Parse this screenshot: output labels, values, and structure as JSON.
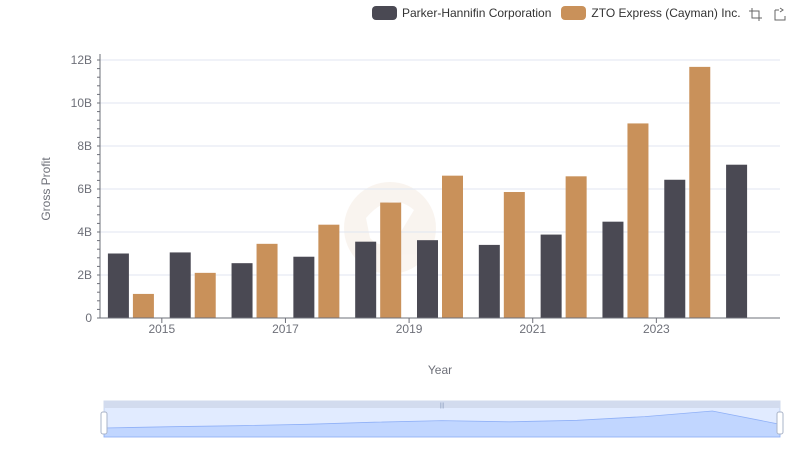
{
  "legend": [
    {
      "name": "Parker-Hannifin Corporation",
      "color": "#4a4953"
    },
    {
      "name": "ZTO Express (Cayman) Inc.",
      "color": "#c9915a"
    }
  ],
  "toolbox": {
    "zoom_icon": "zoom-icon",
    "restore_icon": "zoom-reset-icon"
  },
  "chart_data": {
    "type": "bar",
    "title": "",
    "xlabel": "Year",
    "ylabel": "Gross Profit",
    "categories": [
      2014,
      2015,
      2016,
      2017,
      2018,
      2019,
      2020,
      2021,
      2022,
      2023,
      2024
    ],
    "x_tick_labels": [
      "2015",
      "2017",
      "2019",
      "2021",
      "2023"
    ],
    "y_tick_labels": [
      "0",
      "2B",
      "4B",
      "6B",
      "8B",
      "10B",
      "12B"
    ],
    "ylim": [
      0,
      12000000000
    ],
    "grid": true,
    "legend_position": "top-right",
    "series": [
      {
        "name": "Parker-Hannifin Corporation",
        "color": "#4a4953",
        "values": [
          3000000000,
          3050000000,
          2550000000,
          2850000000,
          3550000000,
          3620000000,
          3400000000,
          3880000000,
          4480000000,
          6430000000,
          7130000000
        ]
      },
      {
        "name": "ZTO Express (Cayman) Inc.",
        "color": "#c9915a",
        "values": [
          1120000000,
          2100000000,
          3450000000,
          4340000000,
          5370000000,
          6620000000,
          5860000000,
          6590000000,
          9050000000,
          11680000000,
          null
        ]
      }
    ],
    "data_zoom": {
      "start": 0,
      "end": 100
    }
  }
}
